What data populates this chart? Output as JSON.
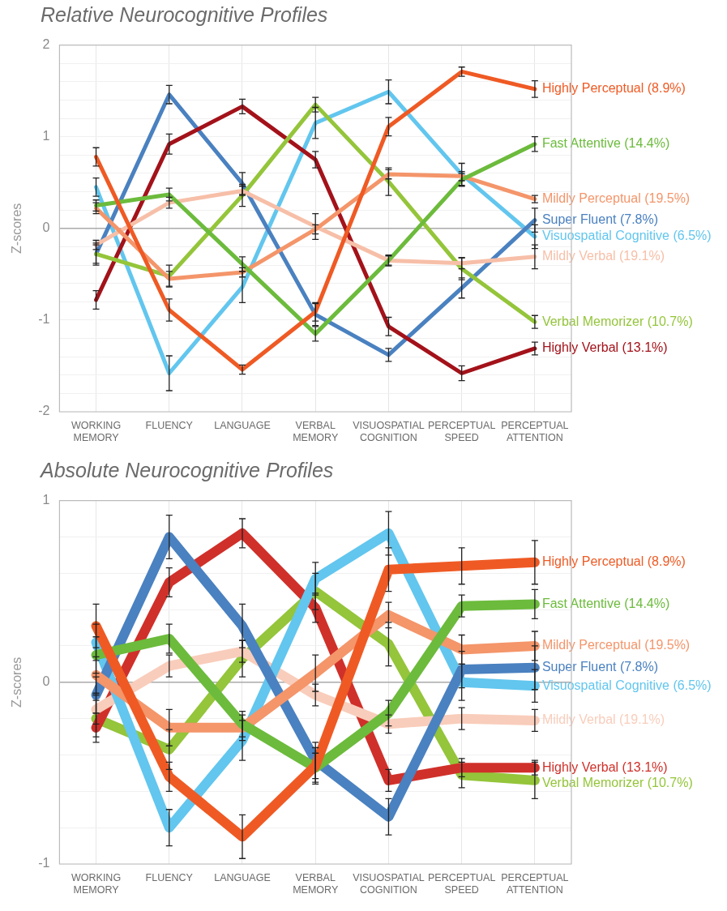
{
  "chart_data": [
    {
      "type": "line",
      "title": "Relative Neurocognitive Profiles",
      "ylabel": "Z-scores",
      "categories": [
        "WORKING MEMORY",
        "FLUENCY",
        "LANGUAGE",
        "VERBAL MEMORY",
        "VISUOSPATIAL COGNITION",
        "PERCEPTUAL SPEED",
        "PERCEPTUAL ATTENTION"
      ],
      "ylim": [
        -2,
        2
      ],
      "yticks": [
        -2,
        {
          "value": -1.8,
          "label": null
        },
        {
          "value": -1.6,
          "label": null
        },
        {
          "value": -1.4,
          "label": null
        },
        {
          "value": -1.2,
          "label": null
        },
        -1,
        {
          "value": -0.8,
          "label": null
        },
        {
          "value": -0.6,
          "label": null
        },
        {
          "value": -0.4,
          "label": null
        },
        {
          "value": -0.2,
          "label": null
        },
        0,
        {
          "value": 0.2,
          "label": null
        },
        {
          "value": 0.4,
          "label": null
        },
        {
          "value": 0.6,
          "label": null
        },
        {
          "value": 0.8,
          "label": null
        },
        1,
        {
          "value": 1.2,
          "label": null
        },
        {
          "value": 1.4,
          "label": null
        },
        {
          "value": 1.6,
          "label": null
        },
        {
          "value": 1.8,
          "label": null
        },
        2
      ],
      "grid": true,
      "legend": false,
      "line_style": "solid",
      "series": [
        {
          "name": "Highly Perceptual (8.9%)",
          "color": "#ef5a24",
          "values": [
            0.78,
            -0.89,
            -1.54,
            -0.91,
            1.11,
            1.71,
            1.52
          ],
          "errors": [
            0.1,
            0.12,
            0.05,
            0.1,
            0.1,
            0.05,
            0.09
          ]
        },
        {
          "name": "Fast Attentive (14.4%)",
          "color": "#6cbb3c",
          "values": [
            0.25,
            0.37,
            -0.39,
            -1.15,
            -0.35,
            0.53,
            0.92
          ],
          "errors": [
            0.06,
            0.07,
            0.08,
            0.08,
            0.06,
            0.07,
            0.08
          ]
        },
        {
          "name": "Mildly Perceptual (19.5%)",
          "color": "#f4956a",
          "values": [
            0.22,
            -0.55,
            -0.48,
            -0.01,
            0.59,
            0.57,
            0.32
          ],
          "errors": [
            0.06,
            0.08,
            0.05,
            0.05,
            0.05,
            0.05,
            0.04
          ]
        },
        {
          "name": "Mildly Verbal (19.1%)",
          "color": "#f7bfa8",
          "values": [
            -0.18,
            0.28,
            0.41,
            0.02,
            -0.35,
            -0.38,
            -0.31
          ],
          "errors": [
            0.05,
            0.06,
            0.05,
            0.14,
            0.05,
            0.06,
            0.13
          ]
        },
        {
          "name": "Verbal Memorizer (10.7%)",
          "color": "#94c53a",
          "values": [
            -0.28,
            -0.52,
            0.36,
            1.35,
            0.51,
            -0.44,
            -1.02
          ],
          "errors": [
            0.1,
            0.12,
            0.12,
            0.08,
            0.15,
            0.12,
            0.07
          ]
        },
        {
          "name": "Highly Verbal (13.1%)",
          "color": "#a3121a",
          "values": [
            -0.78,
            0.92,
            1.33,
            0.75,
            -1.07,
            -1.58,
            -1.31
          ],
          "errors": [
            0.1,
            0.11,
            0.08,
            0.09,
            0.1,
            0.08,
            0.07
          ]
        },
        {
          "name": "Super Fluent (7.8%)",
          "color": "#4a81c0",
          "values": [
            -0.28,
            1.46,
            0.49,
            -0.94,
            -1.38,
            -0.65,
            0.09
          ],
          "errors": [
            0.12,
            0.1,
            0.12,
            0.12,
            0.07,
            0.11,
            0.13
          ]
        },
        {
          "name": "Visuospatial Cognitive (6.5%)",
          "color": "#62c6ee",
          "values": [
            0.45,
            -1.58,
            -0.64,
            1.15,
            1.49,
            0.59,
            -0.09
          ],
          "errors": [
            0.1,
            0.19,
            0.17,
            0.17,
            0.13,
            0.12,
            0.13
          ]
        }
      ]
    },
    {
      "type": "line",
      "title": "Absolute Neurocognitive Profiles",
      "ylabel": "Z-scores",
      "categories": [
        "WORKING MEMORY",
        "FLUENCY",
        "LANGUAGE",
        "VERBAL MEMORY",
        "VISUOSPATIAL COGNITION",
        "PERCEPTUAL SPEED",
        "PERCEPTUAL ATTENTION"
      ],
      "ylim": [
        -1,
        1
      ],
      "yticks": [
        -1,
        {
          "value": -0.8,
          "label": null
        },
        {
          "value": -0.6,
          "label": null
        },
        {
          "value": -0.4,
          "label": null
        },
        {
          "value": -0.2,
          "label": null
        },
        0,
        {
          "value": 0.2,
          "label": null
        },
        {
          "value": 0.4,
          "label": null
        },
        {
          "value": 0.6,
          "label": null
        },
        {
          "value": 0.8,
          "label": null
        },
        1
      ],
      "grid": true,
      "legend": false,
      "line_style": "solid",
      "series": [
        {
          "name": "Highly Perceptual (8.9%)",
          "color": "#ef5a24",
          "values": [
            0.31,
            -0.52,
            -0.85,
            -0.46,
            0.62,
            0.64,
            0.66
          ],
          "errors": [
            0.12,
            0.08,
            0.12,
            0.1,
            0.12,
            0.1,
            0.12
          ]
        },
        {
          "name": "Fast Attentive (14.4%)",
          "color": "#6cbb3c",
          "values": [
            0.15,
            0.24,
            -0.23,
            -0.47,
            -0.17,
            0.42,
            0.43
          ],
          "errors": [
            0.1,
            0.08,
            0.07,
            0.08,
            0.07,
            0.06,
            0.08
          ]
        },
        {
          "name": "Mildly Perceptual (19.5%)",
          "color": "#f4956a",
          "values": [
            0.04,
            -0.25,
            -0.25,
            0.05,
            0.37,
            0.18,
            0.2
          ],
          "errors": [
            0.1,
            0.1,
            0.07,
            0.1,
            0.07,
            0.08,
            0.08
          ]
        },
        {
          "name": "Super Fluent (7.8%)",
          "color": "#4a81c0",
          "values": [
            -0.07,
            0.8,
            0.31,
            -0.43,
            -0.74,
            0.07,
            0.08
          ],
          "errors": [
            0.1,
            0.12,
            0.12,
            0.1,
            0.1,
            0.1,
            0.12
          ]
        },
        {
          "name": "Visuospatial Cognitive (6.5%)",
          "color": "#62c6ee",
          "values": [
            0.22,
            -0.8,
            -0.32,
            0.57,
            0.82,
            0.0,
            -0.02
          ],
          "errors": [
            0.1,
            0.1,
            0.11,
            0.09,
            0.12,
            0.1,
            0.09
          ]
        },
        {
          "name": "Mildly Verbal (19.1%)",
          "color": "#f9cdbb",
          "values": [
            -0.15,
            0.09,
            0.17,
            -0.07,
            -0.23,
            -0.2,
            -0.21
          ],
          "errors": [
            0.08,
            0.06,
            0.06,
            0.06,
            0.05,
            0.06,
            0.06
          ]
        },
        {
          "name": "Highly Verbal (13.1%)",
          "color": "#d0302a",
          "values": [
            -0.25,
            0.55,
            0.82,
            0.41,
            -0.54,
            -0.47,
            -0.47
          ],
          "errors": [
            0.08,
            0.08,
            0.08,
            0.08,
            0.06,
            0.05,
            0.04
          ]
        },
        {
          "name": "Verbal Memorizer (10.7%)",
          "color": "#94c53a",
          "values": [
            -0.2,
            -0.37,
            0.13,
            0.5,
            0.21,
            -0.51,
            -0.54
          ],
          "errors": [
            0.1,
            0.11,
            0.1,
            0.1,
            0.12,
            0.07,
            0.1
          ]
        }
      ]
    }
  ]
}
